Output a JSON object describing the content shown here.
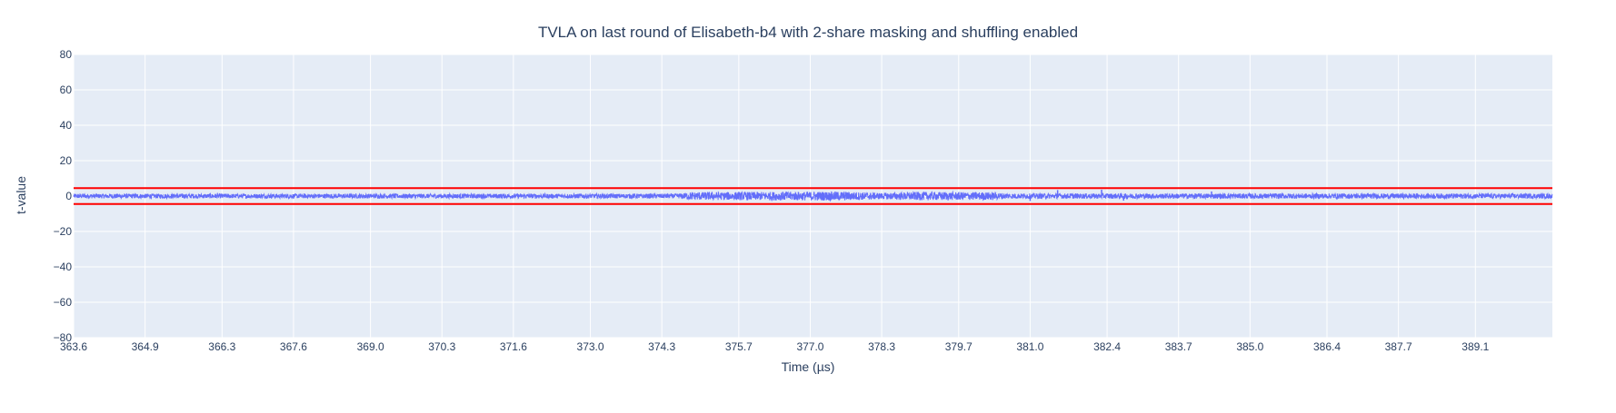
{
  "chart_data": {
    "type": "line",
    "title": "TVLA on last round of Elisabeth-b4 with 2-share masking and shuffling enabled",
    "xlabel": "Time (µs)",
    "ylabel": "t-value",
    "xlim": [
      363.6,
      390.5
    ],
    "ylim": [
      -80,
      80
    ],
    "x_ticks": [
      "363.6",
      "364.9",
      "366.3",
      "367.6",
      "369.0",
      "370.3",
      "371.6",
      "373.0",
      "374.3",
      "375.7",
      "377.0",
      "378.3",
      "379.7",
      "381.0",
      "382.4",
      "383.7",
      "385.0",
      "386.4",
      "387.7",
      "389.1"
    ],
    "y_ticks": [
      80,
      60,
      40,
      20,
      0,
      -20,
      -40,
      -60,
      -80
    ],
    "y_tick_labels": [
      "80",
      "60",
      "40",
      "20",
      "0",
      "−20",
      "−40",
      "−60",
      "−80"
    ],
    "grid": true,
    "thresholds": [
      4.5,
      -4.5
    ],
    "series": [
      {
        "x_range": [
          363.6,
          390.5
        ],
        "envelope": [
          {
            "x": 363.6,
            "amp": 1.3
          },
          {
            "x": 374.6,
            "amp": 1.3
          },
          {
            "x": 374.8,
            "amp": 2.2
          },
          {
            "x": 377.6,
            "amp": 2.6
          },
          {
            "x": 378.3,
            "amp": 1.8
          },
          {
            "x": 379.0,
            "amp": 2.4
          },
          {
            "x": 380.3,
            "amp": 2.2
          },
          {
            "x": 380.6,
            "amp": 1.5
          },
          {
            "x": 390.5,
            "amp": 1.4
          }
        ],
        "spikes": [
          {
            "x": 381.0,
            "y": -2.8
          },
          {
            "x": 381.5,
            "y": 3.4
          },
          {
            "x": 382.3,
            "y": 3.6
          },
          {
            "x": 382.7,
            "y": -2.6
          },
          {
            "x": 384.3,
            "y": 2.6
          }
        ]
      }
    ],
    "colors": {
      "trace": "#636efa",
      "threshold": "#ff0000",
      "plot_bg": "#e5ecf6",
      "grid": "#ffffff",
      "text": "#2a3f5f"
    }
  }
}
